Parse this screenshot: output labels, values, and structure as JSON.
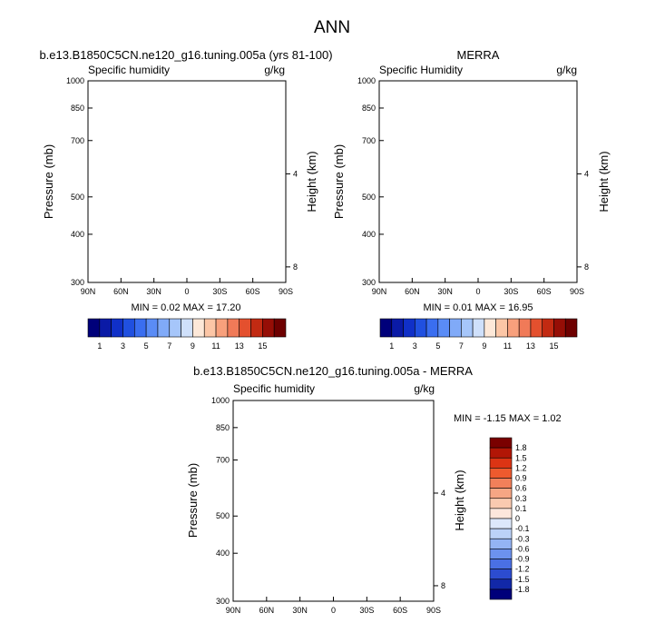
{
  "figure_title": "ANN",
  "chart_data": [
    {
      "type": "heatmap",
      "title": "b.e13.B1850C5CN.ne120_g16.tuning.005a (yrs 81-100)",
      "subtitle_left": "Specific humidity",
      "subtitle_right": "g/kg",
      "ylabel": "Pressure (mb)",
      "ylabel_right": "Height (km)",
      "x_ticks": [
        "90N",
        "60N",
        "30N",
        "0",
        "30S",
        "60S",
        "90S"
      ],
      "x_range": [
        90,
        -90
      ],
      "y_ticks": [
        "300",
        "400",
        "500",
        "700",
        "850",
        "1000"
      ],
      "y_range_mb": [
        300,
        1000
      ],
      "y_right_ticks": [
        "8",
        "4"
      ],
      "min_max": "MIN =  0.02  MAX = 17.20",
      "min": 0.02,
      "max": 17.2,
      "colorbar_labels": [
        "1",
        "3",
        "5",
        "7",
        "9",
        "11",
        "13",
        "15"
      ],
      "contour_levels": [
        1,
        2,
        3,
        4,
        5,
        6,
        7,
        8,
        9,
        10,
        11,
        12,
        13,
        14,
        15,
        16
      ]
    },
    {
      "type": "heatmap",
      "title": "MERRA",
      "subtitle_left": "Specific Humidity",
      "subtitle_right": "g/kg",
      "ylabel": "Pressure (mb)",
      "ylabel_right": "Height (km)",
      "x_ticks": [
        "90N",
        "60N",
        "30N",
        "0",
        "30S",
        "60S",
        "90S"
      ],
      "x_range": [
        90,
        -90
      ],
      "y_ticks": [
        "300",
        "400",
        "500",
        "700",
        "850",
        "1000"
      ],
      "y_range_mb": [
        300,
        1000
      ],
      "y_right_ticks": [
        "8",
        "4"
      ],
      "min_max": "MIN =  0.01  MAX = 16.95",
      "min": 0.01,
      "max": 16.95,
      "colorbar_labels": [
        "1",
        "3",
        "5",
        "7",
        "9",
        "11",
        "13",
        "15"
      ],
      "contour_levels": [
        1,
        2,
        3,
        4,
        5,
        6,
        7,
        8,
        9,
        10,
        11,
        12,
        13,
        14,
        15,
        16
      ]
    },
    {
      "type": "heatmap",
      "title": "b.e13.B1850C5CN.ne120_g16.tuning.005a - MERRA",
      "subtitle_left": "Specific humidity",
      "subtitle_right": "g/kg",
      "ylabel": "Pressure (mb)",
      "ylabel_right": "Height (km)",
      "x_ticks": [
        "90N",
        "60N",
        "30N",
        "0",
        "30S",
        "60S",
        "90S"
      ],
      "x_range": [
        90,
        -90
      ],
      "y_ticks": [
        "300",
        "400",
        "500",
        "700",
        "850",
        "1000"
      ],
      "y_range_mb": [
        300,
        1000
      ],
      "y_right_ticks": [
        "8",
        "4"
      ],
      "min_max": "MIN = -1.15  MAX =  1.02",
      "min": -1.15,
      "max": 1.02,
      "colorbar_labels": [
        "1.8",
        "1.5",
        "1.2",
        "0.9",
        "0.6",
        "0.3",
        "0.1",
        "0",
        "-0.1",
        "-0.3",
        "-0.6",
        "-0.9",
        "-1.2",
        "-1.5",
        "-1.8"
      ]
    }
  ],
  "colors": {
    "abs_scale": [
      "#00007a",
      "#0a1aa6",
      "#1030c8",
      "#2050e0",
      "#3a6ef0",
      "#5a8cf6",
      "#80aaf8",
      "#a6c6fa",
      "#cfe0fb",
      "#fde8d8",
      "#fcc6a6",
      "#f8a07c",
      "#f07a58",
      "#e4502e",
      "#c22a12",
      "#960e06",
      "#6e0000"
    ],
    "diff_scale": [
      "#7a0000",
      "#b21606",
      "#dc3414",
      "#ee5a2e",
      "#f2805a",
      "#f6a684",
      "#facab0",
      "#fde7dc",
      "#dde8fb",
      "#bcd2f8",
      "#94b4f4",
      "#6c92ee",
      "#4a70e4",
      "#2c4cd0",
      "#1228a8",
      "#00007a"
    ]
  }
}
